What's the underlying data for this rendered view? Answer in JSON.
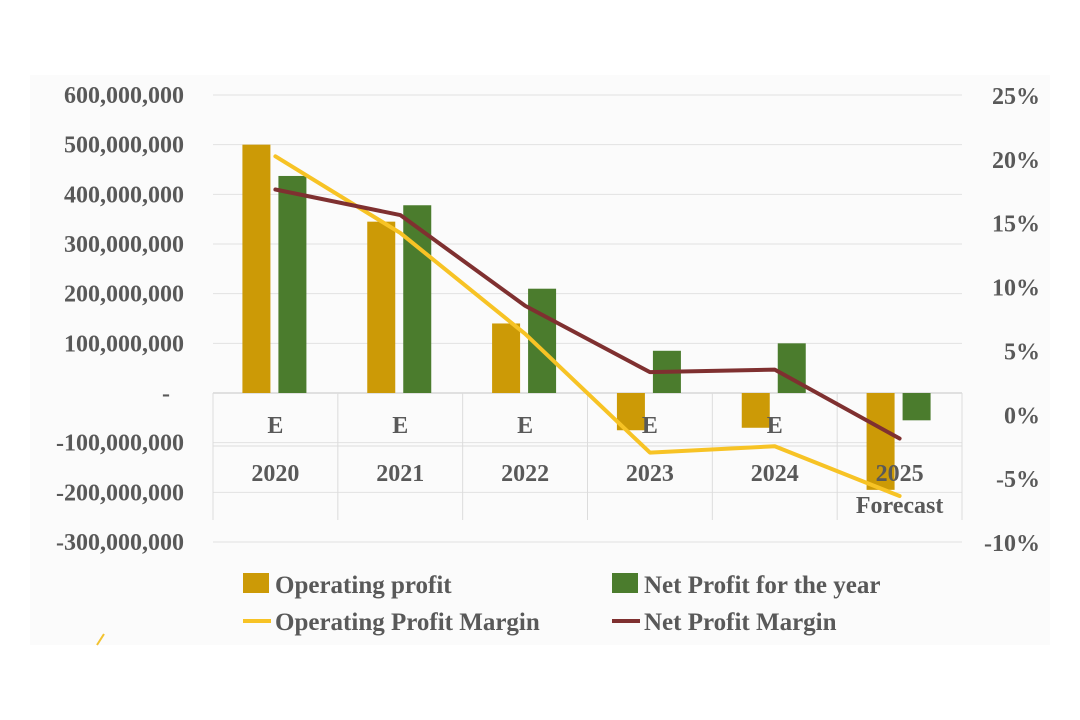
{
  "chart_data": {
    "type": "bar",
    "categories": [
      "2020",
      "2021",
      "2022",
      "2023",
      "2024",
      "2025"
    ],
    "category_sublabels": [
      "E",
      "E",
      "E",
      "E",
      "E",
      ""
    ],
    "category_note": "Forecast",
    "ylim": [
      -300000000,
      600000000
    ],
    "y2lim": [
      -10,
      25
    ],
    "y_tick_labels": [
      "600,000,000",
      "500,000,000",
      "400,000,000",
      "300,000,000",
      "200,000,000",
      "100,000,000",
      "-",
      "-100,000,000",
      "-200,000,000",
      "-300,000,000"
    ],
    "y_tick_values": [
      600000000,
      500000000,
      400000000,
      300000000,
      200000000,
      100000000,
      0,
      -100000000,
      -200000000,
      -300000000
    ],
    "y2_tick_labels": [
      "25%",
      "20%",
      "15%",
      "10%",
      "5%",
      "0%",
      "-5%",
      "-10%"
    ],
    "y2_tick_values": [
      25,
      20,
      15,
      10,
      5,
      0,
      -5,
      -10
    ],
    "bar_series": [
      {
        "name": "Operating profit",
        "values": [
          500000000,
          345000000,
          140000000,
          -75000000,
          -70000000,
          -195000000
        ],
        "color": "#cc9a06"
      },
      {
        "name": "Net Profit for the year",
        "values": [
          437000000,
          378000000,
          210000000,
          85000000,
          100000000,
          -55000000
        ],
        "color": "#4b7c2d"
      }
    ],
    "line_series": [
      {
        "name": "Operating Profit Margin",
        "axis": "right",
        "values": [
          20.2,
          14.2,
          6.3,
          -3.0,
          -2.5,
          -6.4
        ],
        "color": "#f7c325"
      },
      {
        "name": "Net Profit Margin",
        "axis": "right",
        "values": [
          17.6,
          15.6,
          8.5,
          3.3,
          3.5,
          -1.9
        ],
        "color": "#7f3030"
      }
    ],
    "grid": true,
    "legend_position": "bottom"
  }
}
